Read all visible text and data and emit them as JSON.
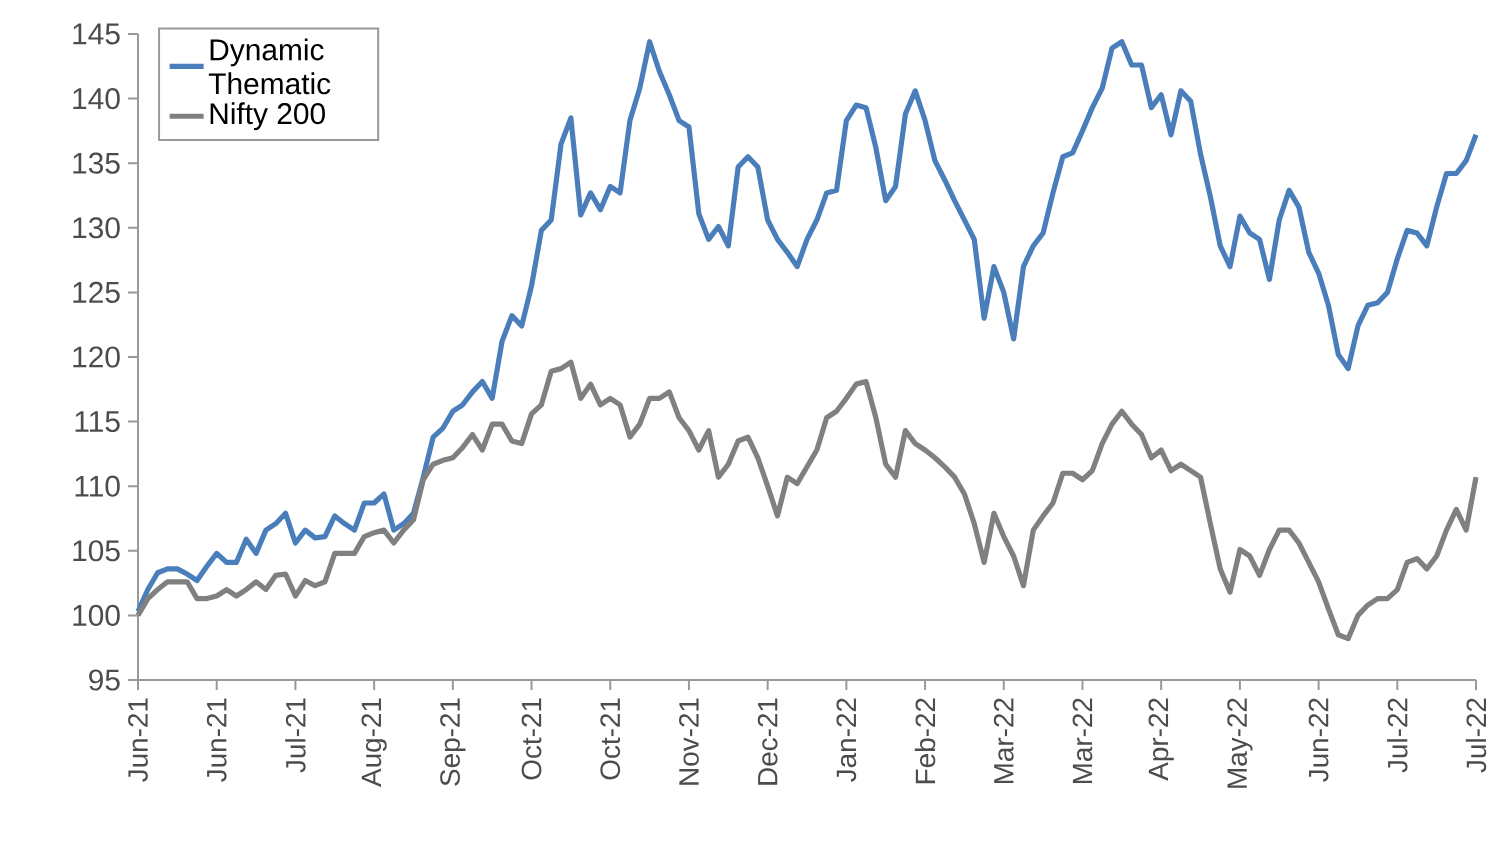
{
  "chart_data": {
    "type": "line",
    "categories": [
      "Jun-21",
      null,
      null,
      null,
      null,
      null,
      null,
      null,
      "Jun-21",
      null,
      null,
      null,
      null,
      null,
      null,
      null,
      "Jul-21",
      null,
      null,
      null,
      null,
      null,
      null,
      null,
      "Aug-21",
      null,
      null,
      null,
      null,
      null,
      null,
      null,
      "Sep-21",
      null,
      null,
      null,
      null,
      null,
      null,
      null,
      "Oct-21",
      null,
      null,
      null,
      null,
      null,
      null,
      null,
      "Oct-21",
      null,
      null,
      null,
      null,
      null,
      null,
      null,
      "Nov-21",
      null,
      null,
      null,
      null,
      null,
      null,
      null,
      "Dec-21",
      null,
      null,
      null,
      null,
      null,
      null,
      null,
      "Jan-22",
      null,
      null,
      null,
      null,
      null,
      null,
      null,
      "Feb-22",
      null,
      null,
      null,
      null,
      null,
      null,
      null,
      "Mar-22",
      null,
      null,
      null,
      null,
      null,
      null,
      null,
      "Mar-22",
      null,
      null,
      null,
      null,
      null,
      null,
      null,
      "Apr-22",
      null,
      null,
      null,
      null,
      null,
      null,
      null,
      "May-22",
      null,
      null,
      null,
      null,
      null,
      null,
      null,
      "Jun-22",
      null,
      null,
      null,
      null,
      null,
      null,
      null,
      "Jul-22",
      null,
      null,
      null,
      null,
      null,
      null,
      null,
      "Jul-22"
    ],
    "series": [
      {
        "name": "Dynamic Thematic",
        "color": "#4a7ebb",
        "values": [
          100.3,
          102.0,
          103.3,
          103.6,
          103.6,
          103.2,
          102.7,
          103.8,
          104.8,
          104.1,
          104.1,
          105.9,
          104.8,
          106.6,
          107.1,
          107.9,
          105.6,
          106.6,
          106.0,
          106.1,
          107.7,
          107.1,
          106.6,
          108.7,
          108.7,
          109.4,
          106.6,
          107.1,
          107.9,
          110.7,
          113.8,
          114.5,
          115.8,
          116.3,
          117.3,
          118.1,
          116.8,
          121.2,
          123.2,
          122.4,
          125.5,
          129.8,
          130.6,
          136.5,
          138.5,
          131.0,
          132.7,
          131.4,
          133.2,
          132.7,
          138.3,
          140.8,
          144.4,
          142.1,
          140.3,
          138.3,
          137.8,
          131.1,
          129.1,
          130.1,
          128.6,
          134.7,
          135.5,
          134.7,
          130.6,
          129.1,
          128.1,
          127.0,
          129.1,
          130.6,
          132.7,
          132.9,
          138.3,
          139.5,
          139.3,
          136.2,
          132.1,
          133.2,
          138.8,
          140.6,
          138.3,
          135.2,
          133.7,
          132.1,
          130.6,
          129.1,
          123.0,
          127.0,
          125.0,
          121.4,
          127.0,
          128.6,
          129.6,
          132.7,
          135.5,
          135.8,
          137.5,
          139.3,
          140.8,
          143.9,
          144.4,
          142.6,
          142.6,
          139.3,
          140.3,
          137.2,
          140.6,
          139.8,
          135.7,
          132.4,
          128.6,
          127.0,
          130.9,
          129.6,
          129.1,
          126.0,
          130.6,
          132.9,
          131.6,
          128.1,
          126.5,
          124.0,
          120.2,
          119.1,
          122.4,
          124.0,
          124.2,
          125.0,
          127.6,
          129.8,
          129.6,
          128.6,
          131.6,
          134.2,
          134.2,
          135.2,
          137.2
        ]
      },
      {
        "name": "Nifty 200",
        "color": "#808080",
        "values": [
          100.0,
          101.3,
          102.0,
          102.6,
          102.6,
          102.6,
          101.3,
          101.3,
          101.5,
          102.0,
          101.5,
          102.0,
          102.6,
          102.0,
          103.1,
          103.2,
          101.5,
          102.7,
          102.3,
          102.6,
          104.8,
          104.8,
          104.8,
          106.1,
          106.4,
          106.6,
          105.6,
          106.6,
          107.4,
          110.5,
          111.7,
          112.0,
          112.2,
          113.0,
          114.0,
          112.8,
          114.8,
          114.8,
          113.5,
          113.3,
          115.6,
          116.3,
          118.9,
          119.1,
          119.6,
          116.8,
          117.9,
          116.3,
          116.8,
          116.3,
          113.8,
          114.8,
          116.8,
          116.8,
          117.3,
          115.3,
          114.3,
          112.8,
          114.3,
          110.7,
          111.7,
          113.5,
          113.8,
          112.2,
          110.0,
          107.7,
          110.7,
          110.2,
          111.5,
          112.8,
          115.3,
          115.8,
          116.8,
          117.9,
          118.1,
          115.3,
          111.7,
          110.7,
          114.3,
          113.3,
          112.8,
          112.2,
          111.5,
          110.7,
          109.4,
          107.1,
          104.1,
          107.9,
          106.1,
          104.6,
          102.3,
          106.6,
          107.7,
          108.7,
          111.0,
          111.0,
          110.5,
          111.2,
          113.3,
          114.8,
          115.8,
          114.8,
          114.0,
          112.2,
          112.8,
          111.2,
          111.7,
          111.2,
          110.7,
          107.1,
          103.6,
          101.8,
          105.1,
          104.6,
          103.1,
          105.1,
          106.6,
          106.6,
          105.6,
          104.1,
          102.6,
          100.5,
          98.5,
          98.2,
          100.0,
          100.8,
          101.3,
          101.3,
          102.0,
          104.1,
          104.4,
          103.6,
          104.6,
          106.6,
          108.2,
          106.6,
          110.7
        ]
      }
    ],
    "ylim": [
      95,
      145
    ],
    "yticks": [
      95,
      100,
      105,
      110,
      115,
      120,
      125,
      130,
      135,
      140,
      145
    ],
    "legend": "top left",
    "grid": false,
    "marker": "none",
    "line_style": "solid"
  }
}
